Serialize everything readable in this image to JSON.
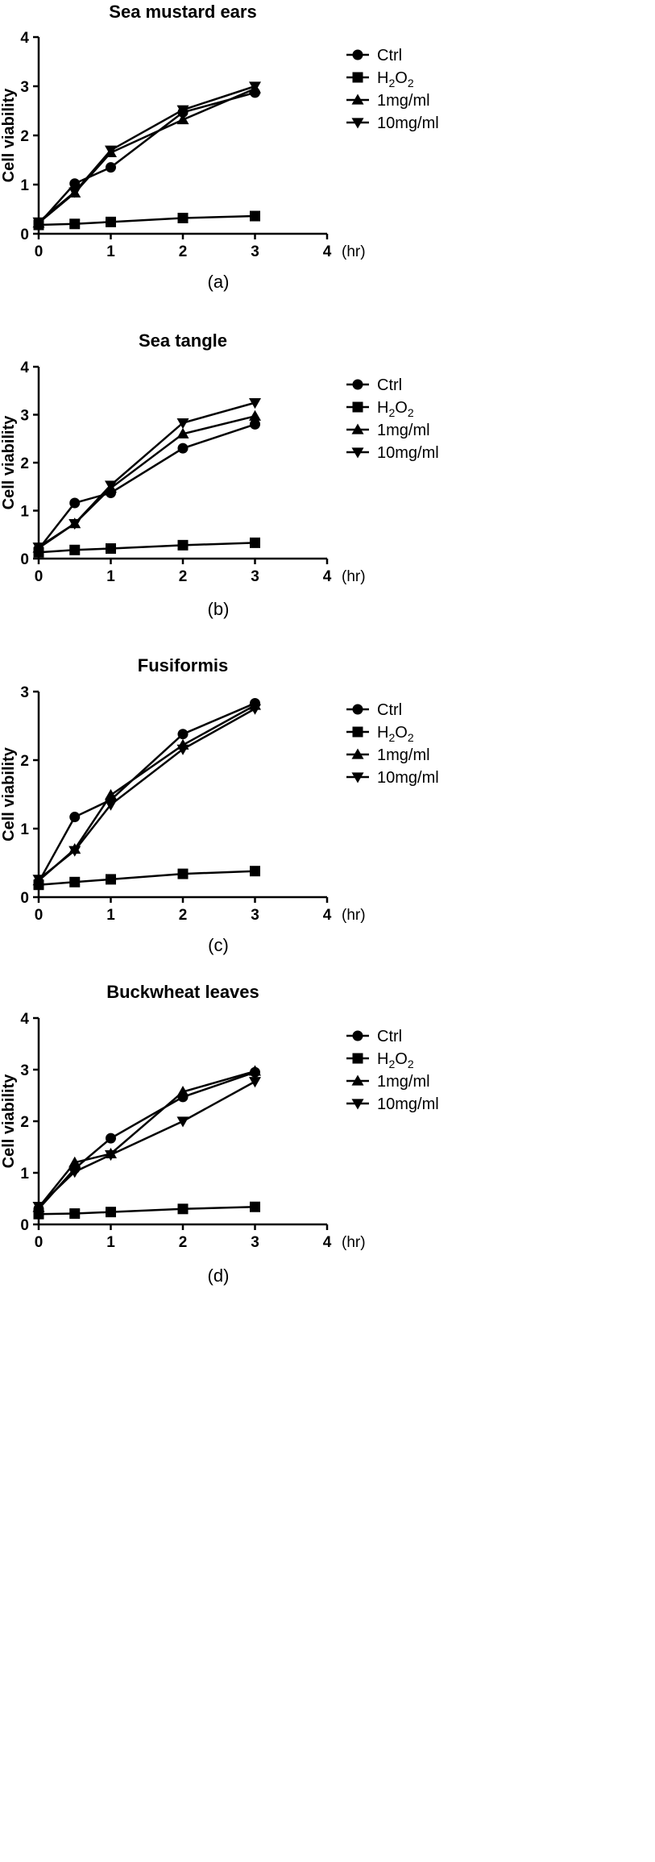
{
  "units_label": "(hr)",
  "legend": {
    "ctrl": "Ctrl",
    "h2o2_main": "H",
    "h2o2_sub1": "2",
    "h2o2_mid": "O",
    "h2o2_sub2": "2",
    "mg1": "1mg/ml",
    "mg10": "10mg/ml"
  },
  "chart_data": [
    {
      "type": "line",
      "title": "Sea mustard ears",
      "ylabel": "Cell viability",
      "xlabel": "(hr)",
      "caption": "(a)",
      "xlim": [
        0,
        4
      ],
      "ylim": [
        0,
        4
      ],
      "x_ticks": [
        "0",
        "1",
        "2",
        "3",
        "4"
      ],
      "y_ticks": [
        "0",
        "1",
        "2",
        "3",
        "4"
      ],
      "grid": false,
      "legend_position": "right",
      "x": [
        0,
        0.5,
        1,
        2,
        3
      ],
      "series": [
        {
          "name": "Ctrl",
          "marker": "circle",
          "values": [
            0.2,
            1.02,
            1.35,
            2.47,
            2.87
          ]
        },
        {
          "name": "H2O2",
          "marker": "square",
          "values": [
            0.18,
            0.2,
            0.24,
            0.32,
            0.36
          ]
        },
        {
          "name": "1mg/ml",
          "marker": "triangle-up",
          "values": [
            0.22,
            0.83,
            1.65,
            2.32,
            2.95
          ]
        },
        {
          "name": "10mg/ml",
          "marker": "triangle-down",
          "values": [
            0.24,
            0.85,
            1.7,
            2.52,
            3.0
          ]
        }
      ]
    },
    {
      "type": "line",
      "title": "Sea tangle",
      "ylabel": "Cell viability",
      "xlabel": "(hr)",
      "caption": "(b)",
      "xlim": [
        0,
        4
      ],
      "ylim": [
        0,
        4
      ],
      "x_ticks": [
        "0",
        "1",
        "2",
        "3",
        "4"
      ],
      "y_ticks": [
        "0",
        "1",
        "2",
        "3",
        "4"
      ],
      "grid": false,
      "legend_position": "right",
      "x": [
        0,
        0.5,
        1,
        2,
        3
      ],
      "series": [
        {
          "name": "Ctrl",
          "marker": "circle",
          "values": [
            0.2,
            1.16,
            1.37,
            2.3,
            2.8
          ]
        },
        {
          "name": "H2O2",
          "marker": "square",
          "values": [
            0.13,
            0.18,
            0.21,
            0.28,
            0.33
          ]
        },
        {
          "name": "1mg/ml",
          "marker": "triangle-up",
          "values": [
            0.22,
            0.73,
            1.47,
            2.6,
            2.97
          ]
        },
        {
          "name": "10mg/ml",
          "marker": "triangle-down",
          "values": [
            0.24,
            0.73,
            1.53,
            2.83,
            3.25
          ]
        }
      ]
    },
    {
      "type": "line",
      "title": "Fusiformis",
      "ylabel": "Cell viability",
      "xlabel": "(hr)",
      "caption": "(c)",
      "xlim": [
        0,
        4
      ],
      "ylim": [
        0,
        3
      ],
      "x_ticks": [
        "0",
        "1",
        "2",
        "3",
        "4"
      ],
      "y_ticks": [
        "0",
        "1",
        "2",
        "3"
      ],
      "grid": false,
      "legend_position": "right",
      "x": [
        0,
        0.5,
        1,
        2,
        3
      ],
      "series": [
        {
          "name": "Ctrl",
          "marker": "circle",
          "values": [
            0.22,
            1.17,
            1.42,
            2.38,
            2.83
          ]
        },
        {
          "name": "H2O2",
          "marker": "square",
          "values": [
            0.18,
            0.22,
            0.26,
            0.34,
            0.38
          ]
        },
        {
          "name": "1mg/ml",
          "marker": "triangle-up",
          "values": [
            0.24,
            0.7,
            1.49,
            2.22,
            2.8
          ]
        },
        {
          "name": "10mg/ml",
          "marker": "triangle-down",
          "values": [
            0.26,
            0.68,
            1.35,
            2.16,
            2.75
          ]
        }
      ]
    },
    {
      "type": "line",
      "title": "Buckwheat leaves",
      "ylabel": "Cell viability",
      "xlabel": "(hr)",
      "caption": "(d)",
      "xlim": [
        0,
        4
      ],
      "ylim": [
        0,
        4
      ],
      "x_ticks": [
        "0",
        "1",
        "2",
        "3",
        "4"
      ],
      "y_ticks": [
        "0",
        "1",
        "2",
        "3",
        "4"
      ],
      "grid": false,
      "legend_position": "right",
      "x": [
        0,
        0.5,
        1,
        2,
        3
      ],
      "series": [
        {
          "name": "Ctrl",
          "marker": "circle",
          "values": [
            0.3,
            1.08,
            1.67,
            2.47,
            2.95
          ]
        },
        {
          "name": "H2O2",
          "marker": "square",
          "values": [
            0.2,
            0.21,
            0.24,
            0.3,
            0.34
          ]
        },
        {
          "name": "1mg/ml",
          "marker": "triangle-up",
          "values": [
            0.33,
            1.2,
            1.37,
            2.57,
            2.97
          ]
        },
        {
          "name": "10mg/ml",
          "marker": "triangle-down",
          "values": [
            0.35,
            1.02,
            1.35,
            2.0,
            2.77
          ]
        }
      ]
    }
  ]
}
